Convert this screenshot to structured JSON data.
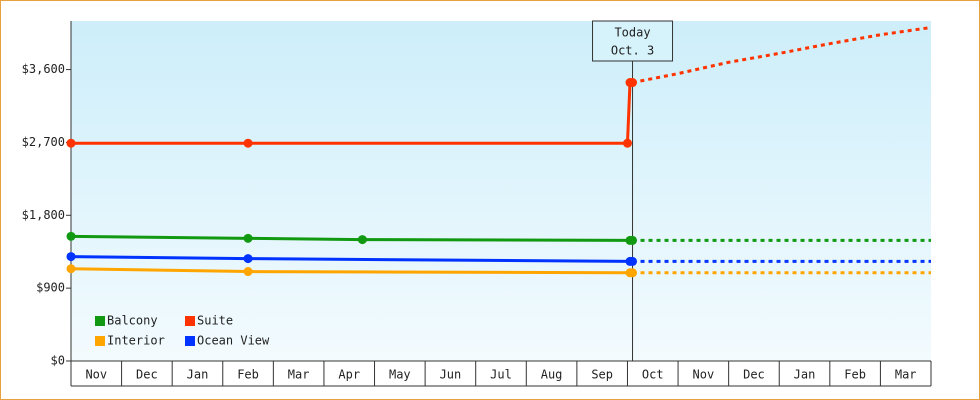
{
  "chart_data": {
    "type": "line",
    "categories": [
      "Nov",
      "Dec",
      "Jan",
      "Feb",
      "Mar",
      "Apr",
      "May",
      "Jun",
      "Jul",
      "Aug",
      "Sep",
      "Oct",
      "Nov",
      "Dec",
      "Jan",
      "Feb",
      "Mar"
    ],
    "xlim": [
      0,
      17
    ],
    "ylim": [
      0,
      4200
    ],
    "yticks": [
      {
        "value": 0,
        "label": "$0"
      },
      {
        "value": 900,
        "label": "$900"
      },
      {
        "value": 1800,
        "label": "$1,800"
      },
      {
        "value": 2700,
        "label": "$2,700"
      },
      {
        "value": 3600,
        "label": "$3,600"
      }
    ],
    "today": {
      "x": 11.1,
      "label": "Today",
      "date": "Oct. 3"
    },
    "legend": "lower left",
    "series": [
      {
        "name": "Balcony",
        "color": "#119911",
        "x": [
          0,
          3.5,
          5.76,
          11.05
        ],
        "values": [
          1540,
          1515,
          1500,
          1490
        ],
        "forecast_x": [
          11.1,
          17
        ],
        "forecast_values": [
          1490,
          1490
        ]
      },
      {
        "name": "Suite",
        "color": "#ff3300",
        "x": [
          0,
          3.5,
          11,
          11.05
        ],
        "values": [
          2690,
          2690,
          2690,
          3440
        ],
        "forecast_x": [
          11.1,
          12,
          13,
          14,
          15,
          16,
          17
        ],
        "forecast_values": [
          3440,
          3550,
          3690,
          3800,
          3920,
          4030,
          4120
        ]
      },
      {
        "name": "Interior",
        "color": "#ffa500",
        "x": [
          0,
          3.5,
          11.05
        ],
        "values": [
          1140,
          1105,
          1090
        ],
        "forecast_x": [
          11.1,
          17
        ],
        "forecast_values": [
          1090,
          1090
        ]
      },
      {
        "name": "Ocean View",
        "color": "#0033ff",
        "x": [
          0,
          3.5,
          11.05
        ],
        "values": [
          1290,
          1265,
          1230
        ],
        "forecast_x": [
          11.1,
          17
        ],
        "forecast_values": [
          1230,
          1230
        ]
      }
    ]
  }
}
